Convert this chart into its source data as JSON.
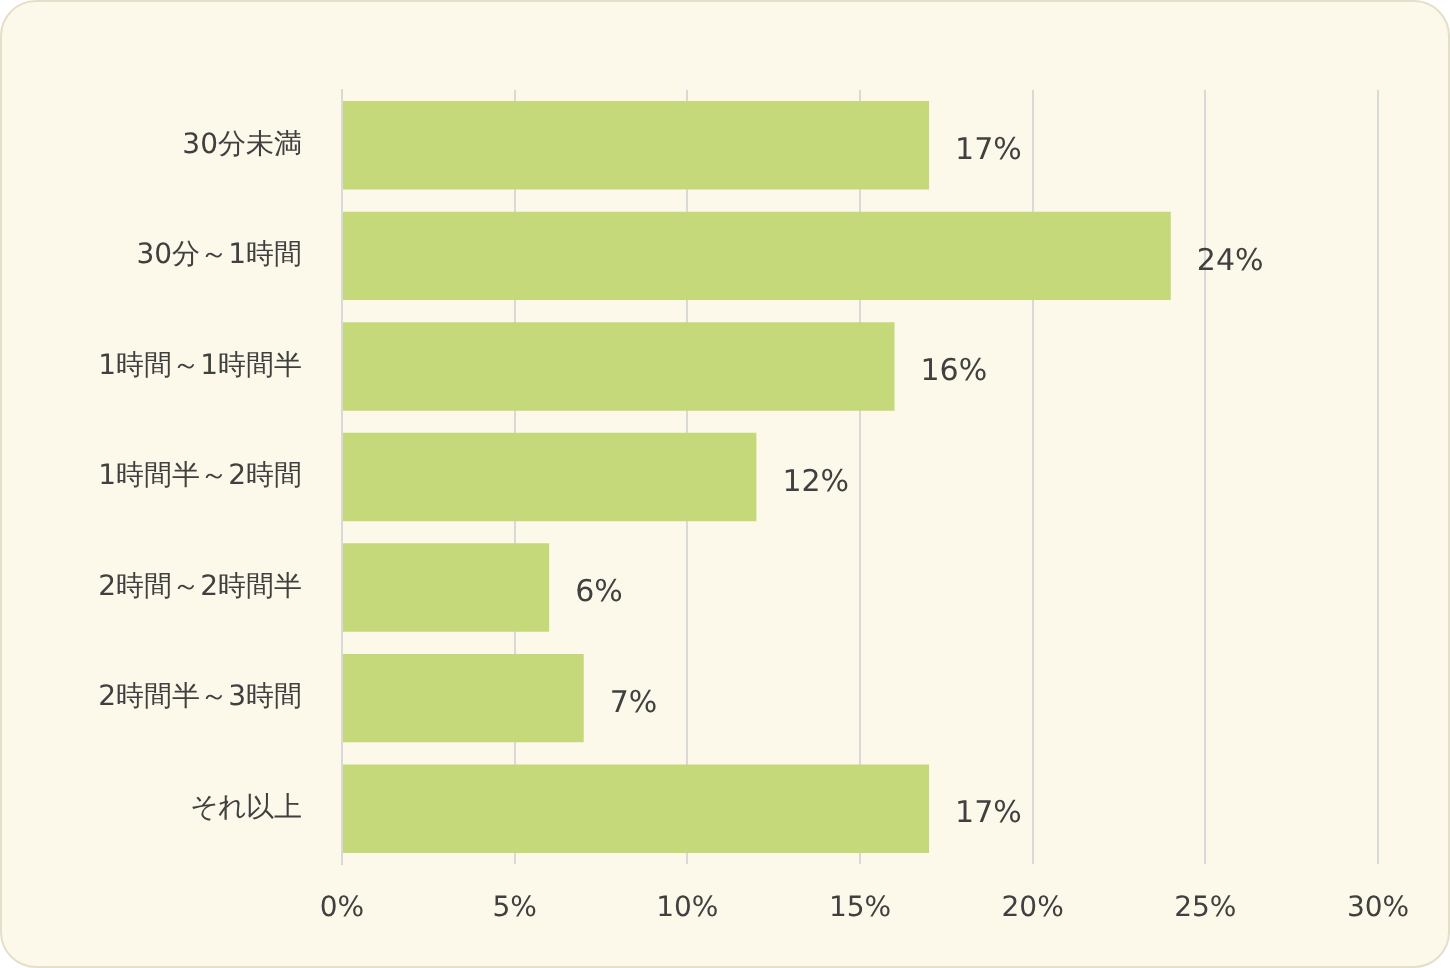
{
  "chart_data": {
    "type": "bar",
    "orientation": "horizontal",
    "categories": [
      "30分未満",
      "30分～1時間",
      "1時間～1時間半",
      "1時間半～2時間",
      "2時間～2時間半",
      "2時間半～3時間",
      "それ以上"
    ],
    "values": [
      17,
      24,
      16,
      12,
      6,
      7,
      17
    ],
    "color": "#c5d97a",
    "value_labels": [
      "17%",
      "24%",
      "16%",
      "12%",
      "6%",
      "7%",
      "17%"
    ],
    "xlim": [
      0,
      30
    ],
    "xticks": [
      {
        "value": 0,
        "label": "0%"
      },
      {
        "value": 5,
        "label": "5%"
      },
      {
        "value": 10,
        "label": "10%"
      },
      {
        "value": 15,
        "label": "15%"
      },
      {
        "value": 20,
        "label": "20%"
      },
      {
        "value": 25,
        "label": "25%"
      },
      {
        "value": 30,
        "label": "30%"
      }
    ],
    "grid": "x"
  }
}
